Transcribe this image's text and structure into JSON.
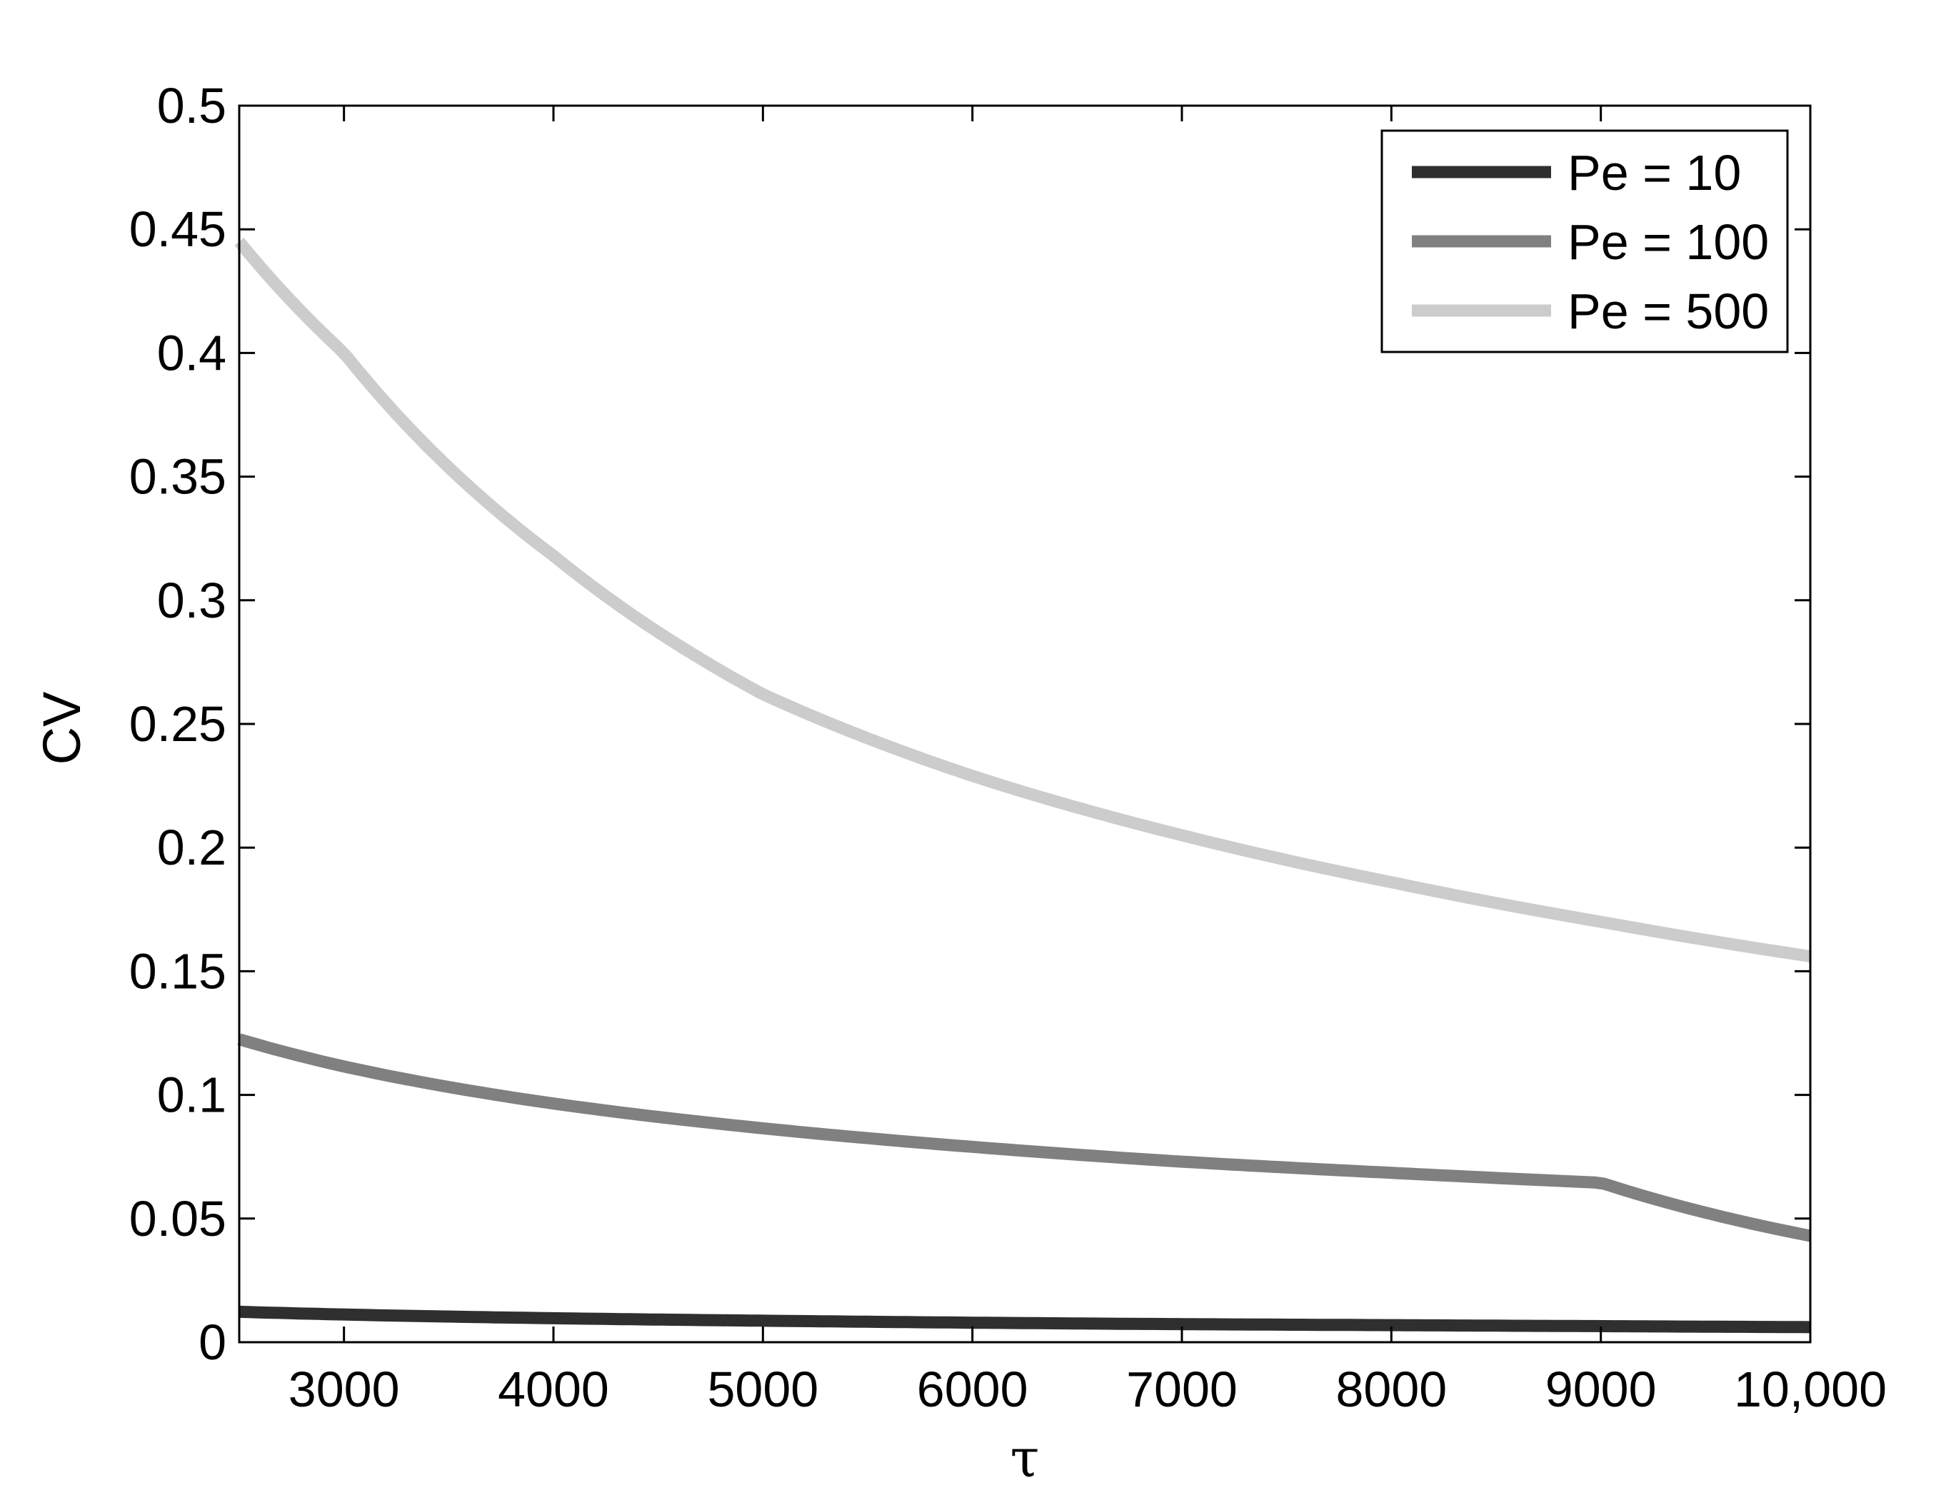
{
  "chart_data": {
    "type": "line",
    "title": "",
    "xlabel": "τ",
    "ylabel": "CV",
    "xlim": [
      2500,
      10000
    ],
    "ylim": [
      0,
      0.5
    ],
    "x_ticks": [
      3000,
      4000,
      5000,
      6000,
      7000,
      8000,
      9000,
      10000
    ],
    "x_tick_labels": [
      "3000",
      "4000",
      "5000",
      "6000",
      "7000",
      "8000",
      "9000",
      "10,000"
    ],
    "y_ticks": [
      0,
      0.05,
      0.1,
      0.15,
      0.2,
      0.25,
      0.3,
      0.35,
      0.4,
      0.45,
      0.5
    ],
    "y_tick_labels": [
      "0",
      "0.05",
      "0.1",
      "0.15",
      "0.2",
      "0.25",
      "0.3",
      "0.35",
      "0.4",
      "0.45",
      "0.5"
    ],
    "grid": false,
    "legend_position": "top-right",
    "x": [
      2500,
      3000,
      4000,
      5000,
      6000,
      7000,
      8000,
      9000,
      10000
    ],
    "series": [
      {
        "name": "Pe = 10",
        "color": "#2f2f2f",
        "values": [
          0.0123,
          0.0112,
          0.0097,
          0.0087,
          0.0079,
          0.0073,
          0.0069,
          0.0065,
          0.0061
        ]
      },
      {
        "name": "Pe = 100",
        "color": "#808080",
        "values": [
          0.1225,
          0.1115,
          0.0965,
          0.0865,
          0.079,
          0.073,
          0.0685,
          0.0645,
          0.043
        ]
      },
      {
        "name": "Pe = 500",
        "color": "#cccccc",
        "values": [
          0.445,
          0.4,
          0.318,
          0.262,
          0.229,
          0.205,
          0.186,
          0.17,
          0.156
        ]
      }
    ]
  }
}
